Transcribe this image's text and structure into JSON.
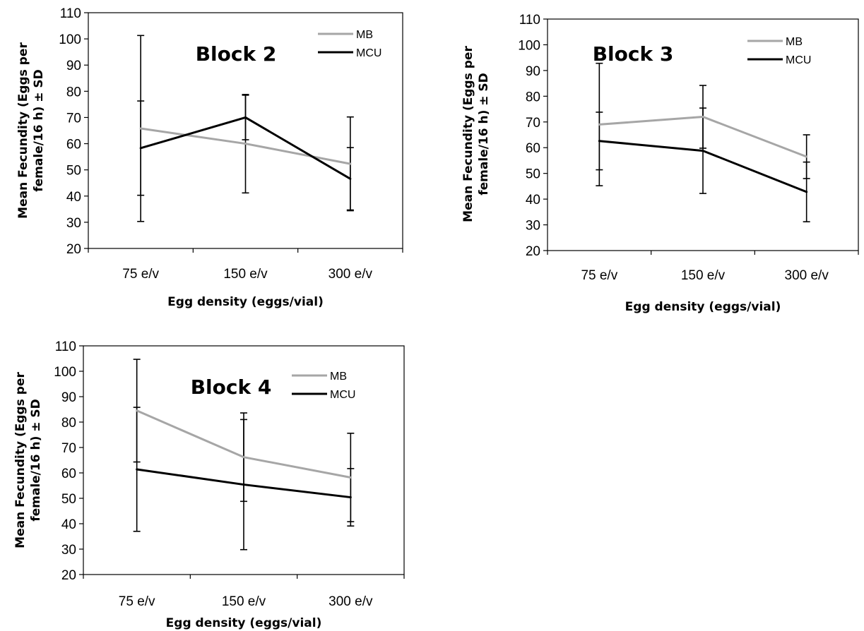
{
  "chart_data": [
    {
      "type": "line",
      "title": "Block 2",
      "xlabel": "Egg density (eggs/vial)",
      "ylabel": "Mean Fecundity (Eggs per female/16 h) ± SD",
      "categories": [
        "75 e/v",
        "150 e/v",
        "300 e/v"
      ],
      "ylim": [
        20,
        110
      ],
      "yticks": [
        20,
        30,
        40,
        50,
        60,
        70,
        80,
        90,
        100,
        110
      ],
      "legend": "top-right",
      "series": [
        {
          "name": "MB",
          "color": "#a6a6a6",
          "values": [
            65.8,
            60,
            52.3
          ],
          "sd": [
            35.5,
            18.8,
            17.9
          ]
        },
        {
          "name": "MCU",
          "color": "#000000",
          "values": [
            58.3,
            70,
            46.6
          ],
          "sd": [
            18,
            8.5,
            11.9
          ]
        }
      ]
    },
    {
      "type": "line",
      "title": "Block 3",
      "xlabel": "Egg density (eggs/vial)",
      "ylabel": "Mean Fecundity (Eggs per female/16 h) ± SD",
      "categories": [
        "75 e/v",
        "150 e/v",
        "300 e/v"
      ],
      "ylim": [
        20,
        110
      ],
      "yticks": [
        20,
        30,
        40,
        50,
        60,
        70,
        80,
        90,
        100,
        110
      ],
      "legend": "top-right",
      "series": [
        {
          "name": "MB",
          "color": "#a6a6a6",
          "values": [
            69,
            72,
            56.5
          ],
          "sd": [
            23.8,
            12.2,
            8.5
          ]
        },
        {
          "name": "MCU",
          "color": "#000000",
          "values": [
            62.6,
            58.8,
            42.8
          ],
          "sd": [
            11.2,
            16.6,
            11.6
          ]
        }
      ]
    },
    {
      "type": "line",
      "title": "Block 4",
      "xlabel": "Egg density (eggs/vial)",
      "ylabel": "Mean Fecundity (Eggs per female/16 h) ± SD",
      "categories": [
        "75 e/v",
        "150 e/v",
        "300 e/v"
      ],
      "ylim": [
        20,
        110
      ],
      "yticks": [
        20,
        30,
        40,
        50,
        60,
        70,
        80,
        90,
        100,
        110
      ],
      "legend": "top-right",
      "series": [
        {
          "name": "MB",
          "color": "#a6a6a6",
          "values": [
            84.5,
            66.2,
            58.2
          ],
          "sd": [
            20.2,
            17.4,
            17.4
          ]
        },
        {
          "name": "MCU",
          "color": "#000000",
          "values": [
            61.4,
            55.4,
            50.4
          ],
          "sd": [
            24.4,
            25.6,
            11.3
          ]
        }
      ]
    }
  ]
}
